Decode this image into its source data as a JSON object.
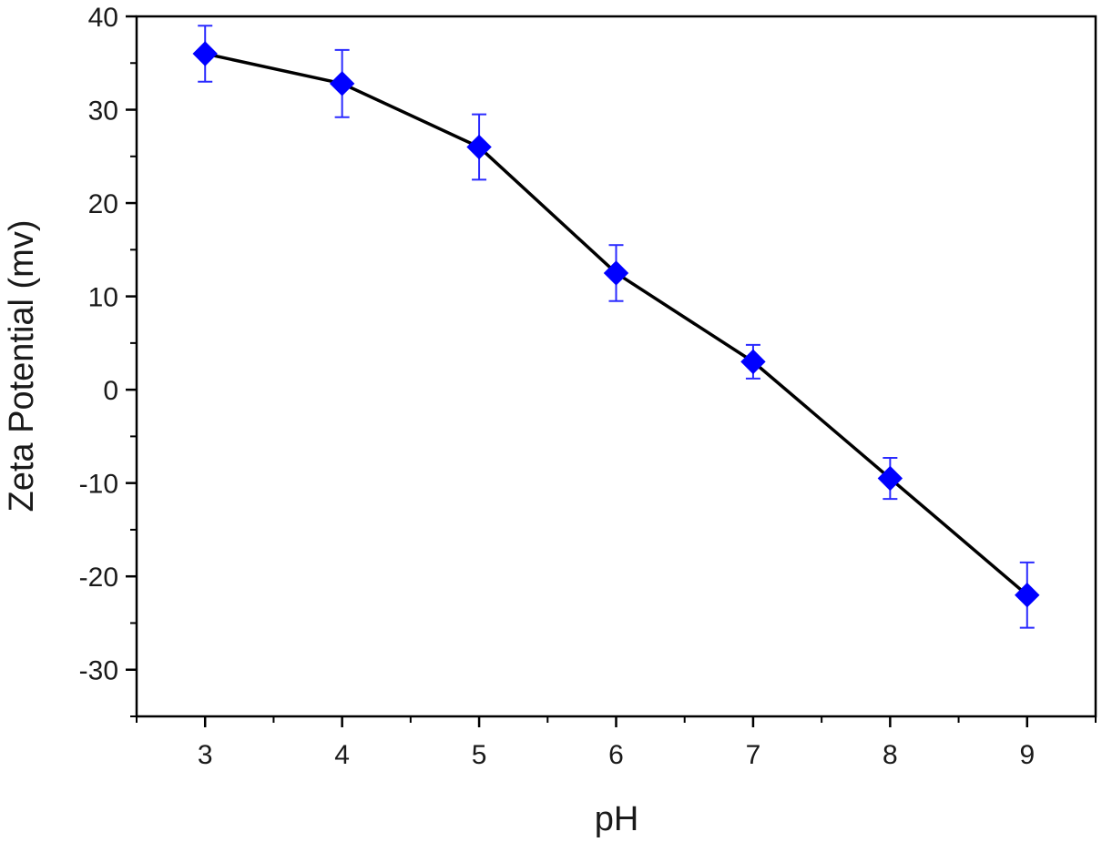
{
  "chart_data": {
    "type": "line",
    "title": "",
    "xlabel": "pH",
    "ylabel": "Zeta Potential (mv)",
    "xlim": [
      2.5,
      9.5
    ],
    "ylim": [
      -35,
      40
    ],
    "x_ticks": [
      3,
      4,
      5,
      6,
      7,
      8,
      9
    ],
    "x_tick_labels": [
      "3",
      "4",
      "5",
      "6",
      "7",
      "8",
      "9"
    ],
    "y_ticks": [
      40,
      30,
      20,
      10,
      0,
      -10,
      -20,
      -30
    ],
    "y_tick_labels": [
      "40",
      "30",
      "20",
      "10",
      "0",
      "-10",
      "-20",
      "-30"
    ],
    "grid": false,
    "legend": "none",
    "series": [
      {
        "x": [
          3,
          4,
          5,
          6,
          7,
          8,
          9
        ],
        "y": [
          36,
          32.8,
          26,
          12.5,
          3,
          -9.5,
          -22
        ],
        "error": [
          3,
          3.6,
          3.5,
          3,
          1.8,
          2.2,
          3.5
        ],
        "marker": "diamond",
        "marker_color": "#0000ff",
        "line_color": "#000000",
        "error_color": "#2a2aff"
      }
    ]
  }
}
